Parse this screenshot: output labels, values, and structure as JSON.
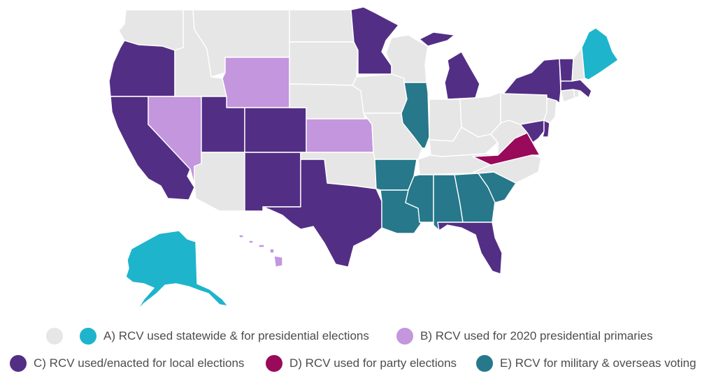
{
  "colors": {
    "none": "#e6e6e6",
    "a": "#1eb4cc",
    "b": "#c396de",
    "c": "#532e85",
    "d": "#990a5a",
    "e": "#26788a"
  },
  "states": [
    {
      "name": "Washington",
      "category": "none"
    },
    {
      "name": "Oregon",
      "category": "c"
    },
    {
      "name": "California",
      "category": "c"
    },
    {
      "name": "Nevada",
      "category": "b"
    },
    {
      "name": "Idaho",
      "category": "none"
    },
    {
      "name": "Montana",
      "category": "none"
    },
    {
      "name": "Wyoming",
      "category": "b"
    },
    {
      "name": "Utah",
      "category": "c"
    },
    {
      "name": "Colorado",
      "category": "c"
    },
    {
      "name": "Arizona",
      "category": "none"
    },
    {
      "name": "New Mexico",
      "category": "c"
    },
    {
      "name": "North Dakota",
      "category": "none"
    },
    {
      "name": "South Dakota",
      "category": "none"
    },
    {
      "name": "Nebraska",
      "category": "none"
    },
    {
      "name": "Kansas",
      "category": "b"
    },
    {
      "name": "Oklahoma",
      "category": "none"
    },
    {
      "name": "Texas",
      "category": "c"
    },
    {
      "name": "Minnesota",
      "category": "c"
    },
    {
      "name": "Iowa",
      "category": "none"
    },
    {
      "name": "Missouri",
      "category": "none"
    },
    {
      "name": "Arkansas",
      "category": "e"
    },
    {
      "name": "Louisiana",
      "category": "e"
    },
    {
      "name": "Wisconsin",
      "category": "none"
    },
    {
      "name": "Illinois",
      "category": "e"
    },
    {
      "name": "Michigan",
      "category": "c"
    },
    {
      "name": "Indiana",
      "category": "none"
    },
    {
      "name": "Ohio",
      "category": "none"
    },
    {
      "name": "Kentucky",
      "category": "none"
    },
    {
      "name": "Tennessee",
      "category": "none"
    },
    {
      "name": "Mississippi",
      "category": "e"
    },
    {
      "name": "Alabama",
      "category": "e"
    },
    {
      "name": "Georgia",
      "category": "e"
    },
    {
      "name": "Florida",
      "category": "c"
    },
    {
      "name": "South Carolina",
      "category": "e"
    },
    {
      "name": "North Carolina",
      "category": "none"
    },
    {
      "name": "Virginia",
      "category": "d"
    },
    {
      "name": "West Virginia",
      "category": "none"
    },
    {
      "name": "Maryland",
      "category": "c"
    },
    {
      "name": "Delaware",
      "category": "c"
    },
    {
      "name": "Pennsylvania",
      "category": "none"
    },
    {
      "name": "New Jersey",
      "category": "none"
    },
    {
      "name": "New York",
      "category": "c"
    },
    {
      "name": "Connecticut",
      "category": "none"
    },
    {
      "name": "Rhode Island",
      "category": "none"
    },
    {
      "name": "Massachusetts",
      "category": "c"
    },
    {
      "name": "Vermont",
      "category": "c"
    },
    {
      "name": "New Hampshire",
      "category": "none"
    },
    {
      "name": "Maine",
      "category": "a"
    },
    {
      "name": "Alaska",
      "category": "a"
    },
    {
      "name": "Hawaii",
      "category": "b"
    }
  ],
  "legend": {
    "items": [
      {
        "key": "none",
        "label": ""
      },
      {
        "key": "a",
        "label": "A) RCV used statewide & for presidential elections"
      },
      {
        "key": "b",
        "label": "B) RCV used for 2020 presidential primaries"
      },
      {
        "key": "c",
        "label": "C) RCV used/enacted for local elections"
      },
      {
        "key": "d",
        "label": "D) RCV used for party elections"
      },
      {
        "key": "e",
        "label": "E) RCV for military & overseas voting"
      }
    ]
  }
}
